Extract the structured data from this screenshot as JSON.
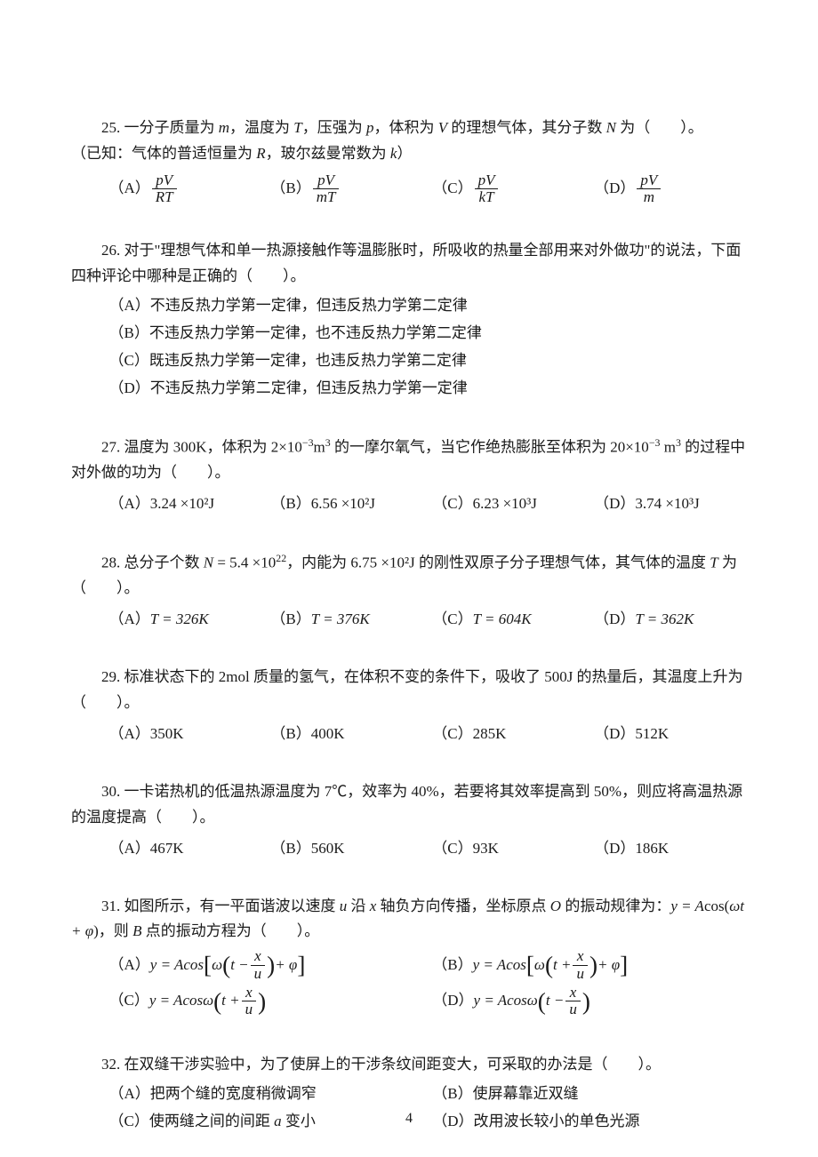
{
  "page_number": "4",
  "text_color": "#1a1a1a",
  "background_color": "#ffffff",
  "font_family": "SimSun",
  "font_size_pt": 13,
  "questions": [
    {
      "num": "25",
      "text_a": "25. 一分子质量为 ",
      "text_b": "，温度为 ",
      "text_c": "，压强为 ",
      "text_d": "，体积为 ",
      "text_e": " 的理想气体，其分子数 ",
      "text_f": " 为（　　）。",
      "var_m": "m",
      "var_T": "T",
      "var_p": "p",
      "var_V": "V",
      "var_N": "N",
      "sub_text_a": "（已知：气体的普适恒量为 ",
      "sub_text_b": "，玻尔兹曼常数为 ",
      "sub_text_c": "）",
      "var_R": "R",
      "var_k": "k",
      "options": {
        "A_label": "（A）",
        "A_num": "pV",
        "A_den": "RT",
        "B_label": "（B）",
        "B_num": "pV",
        "B_den": "mT",
        "C_label": "（C）",
        "C_num": "pV",
        "C_den": "kT",
        "D_label": "（D）",
        "D_num": "pV",
        "D_den": "m"
      }
    },
    {
      "num": "26",
      "text": "26. 对于\"理想气体和单一热源接触作等温膨胀时，所吸收的热量全部用来对外做功\"的说法，下面四种评论中哪种是正确的（　　）。",
      "options": {
        "A": "（A）不违反热力学第一定律，但违反热力学第二定律",
        "B": "（B）不违反热力学第一定律，也不违反热力学第二定律",
        "C": "（C）既违反热力学第一定律，也违反热力学第二定律",
        "D": "（D）不违反热力学第二定律，但违反热力学第一定律"
      }
    },
    {
      "num": "27",
      "text_a": "27. 温度为 300K，体积为 2×10",
      "exp1": "−3",
      "text_b": "m",
      "exp2": "3",
      "text_c": " 的一摩尔氧气，当它作绝热膨胀至体积为 20×10",
      "exp3": "−3",
      "text_d": " m",
      "exp4": "3",
      "text_e": " 的过程中对外做的功为（　　）。",
      "options": {
        "A": "（A）3.24 ×10²J",
        "B": "（B）6.56 ×10²J",
        "C": "（C）6.23 ×10³J",
        "D": "（D）3.74 ×10³J"
      }
    },
    {
      "num": "28",
      "text_a": "28. 总分子个数 ",
      "var_N": "N",
      "text_b": " = 5.4 ×10",
      "exp1": "22",
      "text_c": "，内能为 6.75 ×10²J 的刚性双原子分子理想气体，其气体的温度 ",
      "var_T": "T",
      "text_d": " 为（　　）。",
      "options": {
        "A_label": "（A）",
        "A_eq": "T = 326K",
        "B_label": "（B）",
        "B_eq": "T = 376K",
        "C_label": "（C）",
        "C_eq": "T = 604K",
        "D_label": "（D）",
        "D_eq": "T = 362K"
      }
    },
    {
      "num": "29",
      "text": "29. 标准状态下的 2mol 质量的氢气，在体积不变的条件下，吸收了 500J 的热量后，其温度上升为（　　）。",
      "options": {
        "A": "（A）350K",
        "B": "（B）400K",
        "C": "（C）285K",
        "D": "（D）512K"
      }
    },
    {
      "num": "30",
      "text": "30. 一卡诺热机的低温热源温度为 7℃，效率为 40%，若要将其效率提高到 50%，则应将高温热源的温度提高（　　）。",
      "options": {
        "A": "（A）467K",
        "B": "（B）560K",
        "C": "（C）93K",
        "D": "（D）186K"
      }
    },
    {
      "num": "31",
      "text_a": "31. 如图所示，有一平面谐波以速度 ",
      "var_u": "u",
      "text_b": " 沿 ",
      "var_x": "x",
      "text_c": " 轴负方向传播，坐标原点 ",
      "var_O": "O",
      "text_d": " 的振动规律为：",
      "eq_main_a": "y = ",
      "eq_main_b": "A",
      "eq_main_c": "cos(",
      "eq_main_d": "ωt + φ",
      "eq_main_e": ")，则 ",
      "var_B": "B",
      "text_e": " 点的振动方程为（　　）。",
      "options": {
        "A_label": "（A）",
        "A_pre": "y = Acos",
        "A_inner_a": "ω",
        "A_inner_b": "t − ",
        "A_frac_num": "x",
        "A_frac_den": "u",
        "A_inner_c": " + φ",
        "B_label": "（B）",
        "B_pre": "y = Acos",
        "B_inner_a": "ω",
        "B_inner_b": "t + ",
        "B_frac_num": "x",
        "B_frac_den": "u",
        "B_inner_c": " + φ",
        "C_label": "（C）",
        "C_pre": "y = Acosω",
        "C_inner_b": "t + ",
        "C_frac_num": "x",
        "C_frac_den": "u",
        "D_label": "（D）",
        "D_pre": "y = Acosω",
        "D_inner_b": "t − ",
        "D_frac_num": "x",
        "D_frac_den": "u"
      }
    },
    {
      "num": "32",
      "text": "32. 在双缝干涉实验中，为了使屏上的干涉条纹间距变大，可采取的办法是（　　）。",
      "options": {
        "A": "（A）把两个缝的宽度稍微调窄",
        "B": "（B）使屏幕靠近双缝",
        "C_a": "（C）使两缝之间的间距 ",
        "C_var": "a",
        "C_b": " 变小",
        "D": "（D）改用波长较小的单色光源"
      }
    }
  ]
}
